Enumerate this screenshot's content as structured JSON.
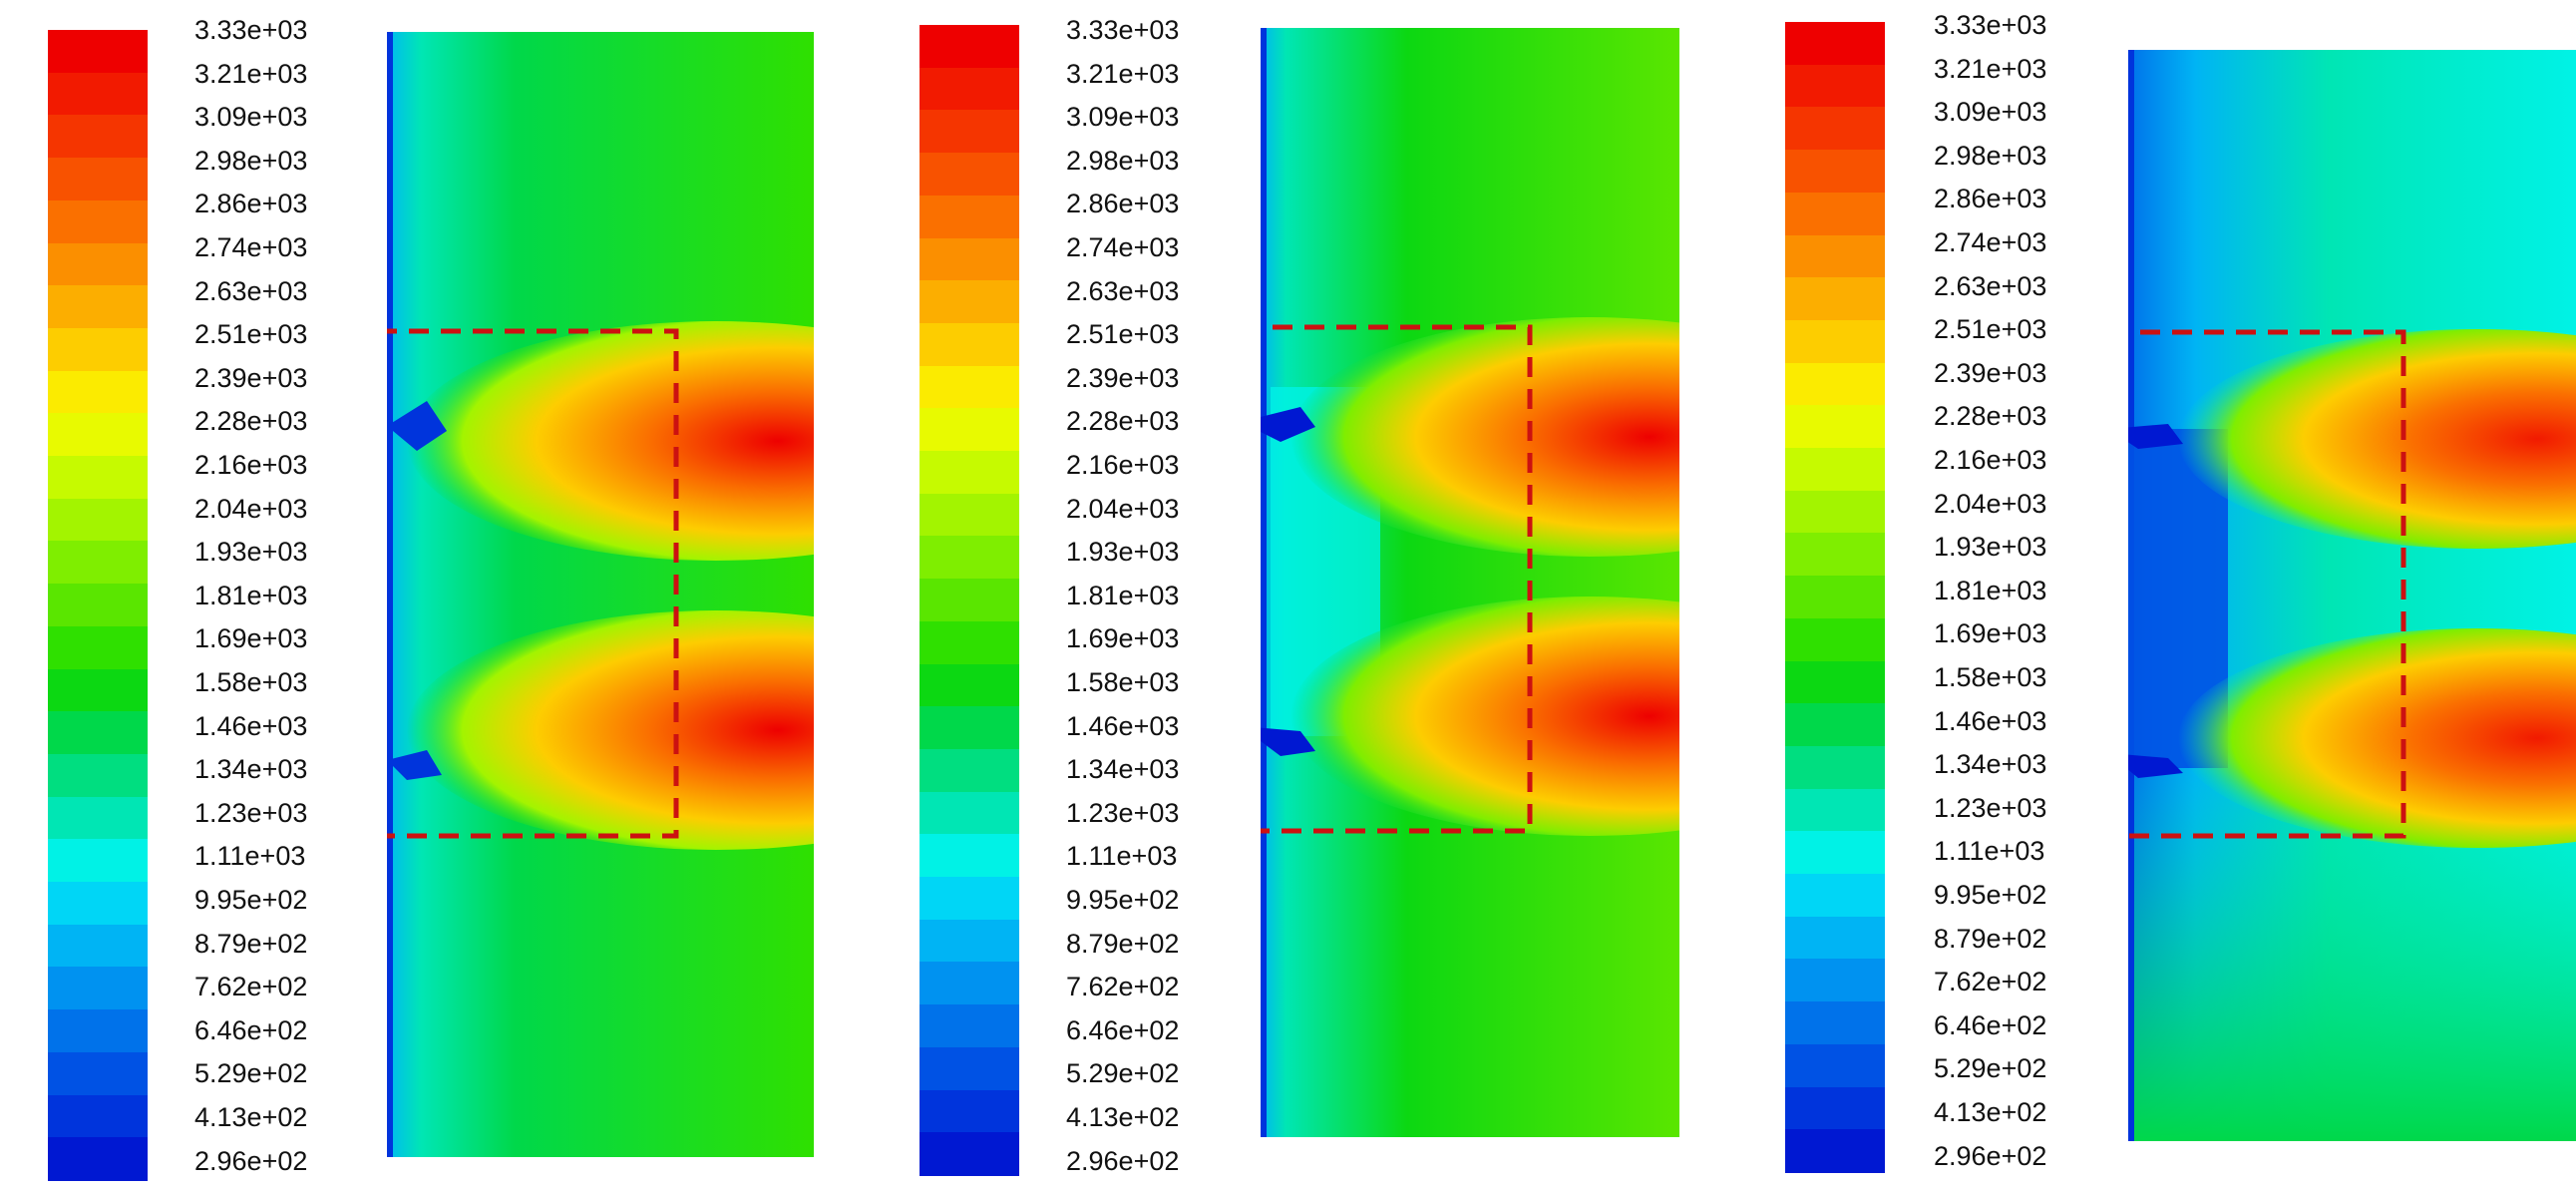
{
  "figure": {
    "panels": [
      {
        "id": "panel-1"
      },
      {
        "id": "panel-2"
      },
      {
        "id": "panel-3"
      }
    ],
    "colorbar": {
      "labels": [
        "3.33e+03",
        "3.21e+03",
        "3.09e+03",
        "2.98e+03",
        "2.86e+03",
        "2.74e+03",
        "2.63e+03",
        "2.51e+03",
        "2.39e+03",
        "2.28e+03",
        "2.16e+03",
        "2.04e+03",
        "1.93e+03",
        "1.81e+03",
        "1.69e+03",
        "1.58e+03",
        "1.46e+03",
        "1.34e+03",
        "1.23e+03",
        "1.11e+03",
        "9.95e+02",
        "8.79e+02",
        "7.62e+02",
        "6.46e+02",
        "5.29e+02",
        "4.13e+02",
        "2.96e+02"
      ],
      "colors": [
        "#ee0000",
        "#f21a00",
        "#f53500",
        "#f85200",
        "#fa7000",
        "#fb8f00",
        "#fcae00",
        "#fdcd00",
        "#fbeb00",
        "#e8fa00",
        "#c6fa00",
        "#a3f400",
        "#7fee00",
        "#5ae600",
        "#2fe000",
        "#0cd812",
        "#00d84a",
        "#00de80",
        "#00e6b4",
        "#00f2e6",
        "#00d6f6",
        "#00b4f4",
        "#0092f0",
        "#0072ea",
        "#0052e4",
        "#0034dc",
        "#0018d2"
      ]
    }
  }
}
